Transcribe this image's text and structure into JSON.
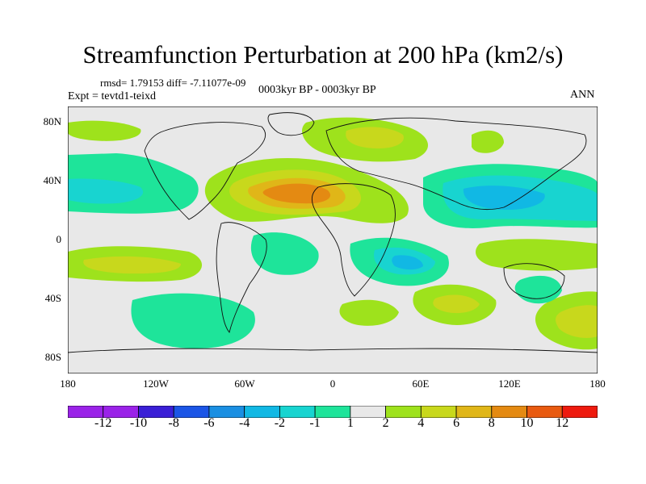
{
  "title": "Streamfunction Perturbation at 200 hPa (km2/s)",
  "stats": "rmsd= 1.79153 diff= -7.11077e-09",
  "experiment": "Expt = tevtd1-teixd",
  "period": "0003kyr BP - 0003kyr BP",
  "season": "ANN",
  "lat_labels": [
    "80N",
    "40N",
    "0",
    "40S",
    "80S"
  ],
  "lon_labels": [
    "180",
    "120W",
    "60W",
    "0",
    "60E",
    "120E",
    "180"
  ],
  "colorbar": {
    "labels": [
      "-12",
      "-10",
      "-8",
      "-6",
      "-4",
      "-2",
      "-1",
      "1",
      "2",
      "4",
      "6",
      "8",
      "10",
      "12"
    ],
    "colors": [
      "#9a22e8",
      "#3a1fd6",
      "#1b55e6",
      "#1a8fe2",
      "#11b8e4",
      "#18d4d0",
      "#1ee49a",
      "#e8e8e8",
      "#9ee21c",
      "#c8d81c",
      "#e0b618",
      "#e48a12",
      "#e85a10",
      "#ee1a0e"
    ]
  }
}
